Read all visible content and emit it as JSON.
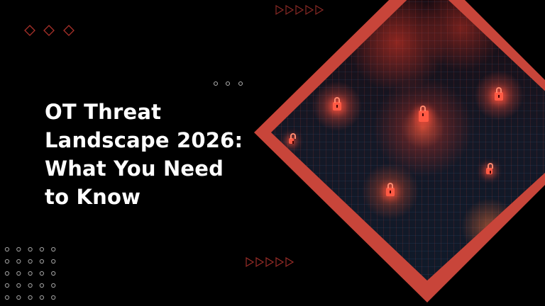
{
  "title": {
    "lines": [
      "OT Threat",
      "Landscape 2026:",
      "What You Need",
      "to Know"
    ]
  },
  "colors": {
    "background": "#000000",
    "accent": "#c8453a",
    "decor_red": "#8a2a26",
    "decor_grey": "#9a9a9a",
    "title": "#ffffff"
  },
  "decor": {
    "diamond_icon": "diamond-outline",
    "circle_icon": "circle-outline",
    "triangle_icon": "play-triangle-outline"
  },
  "image": {
    "subject": "glowing padlocks on circuit grid"
  }
}
